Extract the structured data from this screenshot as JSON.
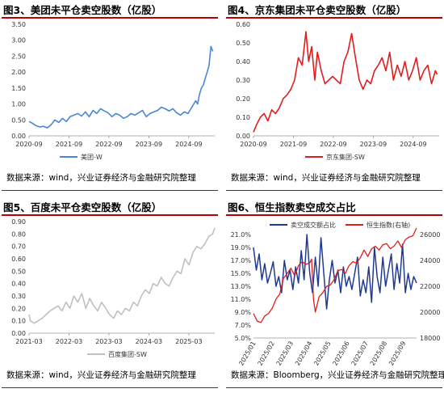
{
  "source_text": "数据来源：wind，兴业证券经济与金融研究院整理",
  "source_text_bbg": "数据来源：Bloomberg，兴业证券经济与金融研究院整理",
  "chart_data": [
    {
      "id": "fig3",
      "type": "line",
      "title": "图3、美团未平仓卖空股数（亿股）",
      "ylim": [
        0,
        3.5
      ],
      "yticks": [
        "0.00",
        "0.50",
        "1.00",
        "1.50",
        "2.00",
        "2.50",
        "3.00",
        "3.50"
      ],
      "xticks": [
        "2020-09",
        "2021-09",
        "2022-09",
        "2023-09",
        "2024-09"
      ],
      "xrange": [
        2020.67,
        2025.55
      ],
      "color": "#4a86d4",
      "series": [
        {
          "name": "美团-W",
          "x": [
            2020.67,
            2020.75,
            2020.85,
            2020.95,
            2021.05,
            2021.15,
            2021.25,
            2021.35,
            2021.45,
            2021.55,
            2021.65,
            2021.75,
            2021.85,
            2021.95,
            2022.05,
            2022.15,
            2022.25,
            2022.35,
            2022.45,
            2022.55,
            2022.65,
            2022.75,
            2022.85,
            2022.95,
            2023.05,
            2023.15,
            2023.25,
            2023.35,
            2023.45,
            2023.55,
            2023.65,
            2023.75,
            2023.85,
            2023.95,
            2024.05,
            2024.15,
            2024.25,
            2024.35,
            2024.45,
            2024.55,
            2024.65,
            2024.75,
            2024.85,
            2024.95,
            2025.05,
            2025.1,
            2025.15,
            2025.2,
            2025.25,
            2025.3,
            2025.35,
            2025.4,
            2025.45,
            2025.5
          ],
          "y": [
            0.45,
            0.4,
            0.32,
            0.28,
            0.3,
            0.25,
            0.35,
            0.5,
            0.42,
            0.55,
            0.45,
            0.6,
            0.65,
            0.7,
            0.62,
            0.75,
            0.6,
            0.8,
            0.7,
            0.85,
            0.78,
            0.72,
            0.6,
            0.7,
            0.65,
            0.55,
            0.6,
            0.7,
            0.65,
            0.72,
            0.8,
            0.6,
            0.7,
            0.75,
            0.8,
            0.9,
            0.85,
            0.78,
            0.85,
            0.72,
            0.65,
            0.75,
            0.7,
            0.9,
            1.1,
            1.0,
            1.3,
            1.5,
            1.6,
            1.8,
            2.0,
            2.2,
            2.8,
            2.65
          ]
        }
      ]
    },
    {
      "id": "fig4",
      "type": "line",
      "title": "图4、京东集团未平仓卖空股数（亿股）",
      "ylim": [
        0,
        0.6
      ],
      "yticks": [
        "0.00",
        "0.10",
        "0.20",
        "0.30",
        "0.40",
        "0.50",
        "0.60"
      ],
      "xticks": [
        "2020-09",
        "2021-09",
        "2022-09",
        "2023-09",
        "2024-09"
      ],
      "xrange": [
        2020.67,
        2025.55
      ],
      "color": "#e11d1d",
      "series": [
        {
          "name": "京东集团-SW",
          "x": [
            2020.67,
            2020.75,
            2020.85,
            2020.95,
            2021.05,
            2021.15,
            2021.25,
            2021.35,
            2021.45,
            2021.55,
            2021.65,
            2021.75,
            2021.85,
            2021.95,
            2022.05,
            2022.12,
            2022.2,
            2022.28,
            2022.35,
            2022.45,
            2022.55,
            2022.65,
            2022.75,
            2022.85,
            2022.95,
            2023.05,
            2023.15,
            2023.25,
            2023.35,
            2023.45,
            2023.55,
            2023.65,
            2023.75,
            2023.85,
            2023.95,
            2024.05,
            2024.15,
            2024.25,
            2024.35,
            2024.45,
            2024.55,
            2024.65,
            2024.75,
            2024.85,
            2024.95,
            2025.05,
            2025.15,
            2025.25,
            2025.35,
            2025.45,
            2025.5
          ],
          "y": [
            0.02,
            0.06,
            0.1,
            0.12,
            0.08,
            0.14,
            0.12,
            0.15,
            0.2,
            0.22,
            0.25,
            0.3,
            0.42,
            0.38,
            0.56,
            0.4,
            0.48,
            0.3,
            0.45,
            0.35,
            0.28,
            0.3,
            0.32,
            0.3,
            0.28,
            0.4,
            0.45,
            0.55,
            0.42,
            0.3,
            0.25,
            0.3,
            0.28,
            0.35,
            0.38,
            0.42,
            0.35,
            0.45,
            0.3,
            0.38,
            0.32,
            0.4,
            0.3,
            0.35,
            0.42,
            0.3,
            0.35,
            0.38,
            0.28,
            0.35,
            0.33
          ]
        }
      ]
    },
    {
      "id": "fig5",
      "type": "line",
      "title": "图5、百度未平仓卖空股数（亿股）",
      "ylim": [
        0,
        0.9
      ],
      "yticks": [
        "0.00",
        "0.10",
        "0.20",
        "0.30",
        "0.40",
        "0.50",
        "0.60",
        "0.70",
        "0.80",
        "0.90"
      ],
      "xticks": [
        "2021-03",
        "2022-03",
        "2023-03",
        "2024-03",
        "2025-03"
      ],
      "xrange": [
        2021.17,
        2025.85
      ],
      "color": "#c0c0c0",
      "series": [
        {
          "name": "百度集团-SW",
          "x": [
            2021.17,
            2021.2,
            2021.3,
            2021.4,
            2021.5,
            2021.6,
            2021.7,
            2021.8,
            2021.9,
            2022.0,
            2022.1,
            2022.2,
            2022.3,
            2022.4,
            2022.5,
            2022.6,
            2022.7,
            2022.8,
            2022.9,
            2023.0,
            2023.1,
            2023.2,
            2023.3,
            2023.4,
            2023.5,
            2023.6,
            2023.7,
            2023.8,
            2023.9,
            2024.0,
            2024.1,
            2024.2,
            2024.3,
            2024.4,
            2024.5,
            2024.6,
            2024.7,
            2024.8,
            2024.9,
            2025.0,
            2025.1,
            2025.2,
            2025.3,
            2025.4,
            2025.5,
            2025.6,
            2025.7,
            2025.8,
            2025.85
          ],
          "y": [
            0.15,
            0.1,
            0.08,
            0.1,
            0.12,
            0.15,
            0.18,
            0.2,
            0.22,
            0.18,
            0.25,
            0.2,
            0.3,
            0.25,
            0.32,
            0.2,
            0.28,
            0.22,
            0.18,
            0.25,
            0.2,
            0.15,
            0.12,
            0.18,
            0.15,
            0.2,
            0.18,
            0.25,
            0.22,
            0.3,
            0.35,
            0.32,
            0.4,
            0.38,
            0.45,
            0.4,
            0.38,
            0.45,
            0.5,
            0.48,
            0.6,
            0.55,
            0.65,
            0.7,
            0.68,
            0.72,
            0.78,
            0.8,
            0.85
          ]
        }
      ]
    },
    {
      "id": "fig6",
      "type": "line",
      "title": "图6、恒生指数卖空成交占比",
      "ylim": [
        5.0,
        21.0
      ],
      "yticks": [
        "5.0%",
        "7.0%",
        "9.0%",
        "11.0%",
        "13.0%",
        "15.0%",
        "17.0%",
        "19.0%",
        "21.0%"
      ],
      "y2lim": [
        18000,
        26000
      ],
      "y2ticks": [
        "18000",
        "20000",
        "22000",
        "24000",
        "26000"
      ],
      "xticks": [
        "2025/01",
        "2025/02",
        "2025/03",
        "2025/04",
        "2025/05",
        "2025/06",
        "2025/07",
        "2025/08",
        "2025/09"
      ],
      "xrange": [
        0,
        8.7
      ],
      "legend": [
        "卖空成交额占比",
        "恒生指数(右轴)"
      ],
      "series": [
        {
          "name": "卖空成交额占比",
          "axis": "left",
          "color": "#1f3a93",
          "x": [
            0,
            0.15,
            0.3,
            0.45,
            0.6,
            0.75,
            0.9,
            1.05,
            1.2,
            1.35,
            1.5,
            1.65,
            1.8,
            1.95,
            2.1,
            2.25,
            2.4,
            2.55,
            2.7,
            2.85,
            3.0,
            3.15,
            3.3,
            3.45,
            3.6,
            3.75,
            3.9,
            4.05,
            4.2,
            4.35,
            4.5,
            4.65,
            4.8,
            4.95,
            5.1,
            5.25,
            5.4,
            5.55,
            5.7,
            5.85,
            6.0,
            6.15,
            6.3,
            6.45,
            6.6,
            6.75,
            6.9,
            7.05,
            7.2,
            7.35,
            7.5,
            7.65,
            7.8,
            7.95,
            8.1,
            8.25,
            8.4,
            8.55,
            8.7
          ],
          "y": [
            19.0,
            15.5,
            18.0,
            14.0,
            16.5,
            13.5,
            15.0,
            16.8,
            13.0,
            14.5,
            12.0,
            17.0,
            14.0,
            15.5,
            12.5,
            16.0,
            13.5,
            18.5,
            14.0,
            21.0,
            15.0,
            12.0,
            17.5,
            13.0,
            20.5,
            15.0,
            9.5,
            14.0,
            17.0,
            13.5,
            15.5,
            12.0,
            16.0,
            13.0,
            14.5,
            12.5,
            15.0,
            17.5,
            11.5,
            14.0,
            12.0,
            16.0,
            10.5,
            19.0,
            14.5,
            12.0,
            17.5,
            13.0,
            15.5,
            18.0,
            12.5,
            16.5,
            13.5,
            19.5,
            12.0,
            15.0,
            12.5,
            14.5,
            13.5
          ]
        },
        {
          "name": "恒生指数(右轴)",
          "axis": "right",
          "color": "#e11d1d",
          "x": [
            0,
            0.2,
            0.4,
            0.6,
            0.8,
            1.0,
            1.2,
            1.4,
            1.6,
            1.8,
            2.0,
            2.2,
            2.4,
            2.6,
            2.8,
            3.0,
            3.1,
            3.2,
            3.3,
            3.5,
            3.7,
            3.9,
            4.1,
            4.3,
            4.5,
            4.7,
            4.9,
            5.1,
            5.3,
            5.5,
            5.7,
            5.9,
            6.1,
            6.3,
            6.5,
            6.7,
            6.9,
            7.1,
            7.3,
            7.5,
            7.7,
            7.9,
            8.1,
            8.3,
            8.5,
            8.7
          ],
          "y": [
            19900,
            19300,
            19200,
            19700,
            19900,
            20300,
            21000,
            21400,
            22600,
            23000,
            23400,
            22800,
            23600,
            23900,
            23700,
            23800,
            24100,
            21000,
            20000,
            21200,
            21500,
            22000,
            22100,
            22500,
            23200,
            23300,
            23000,
            23600,
            23900,
            23800,
            24200,
            24800,
            24300,
            24900,
            25100,
            24800,
            25200,
            25300,
            24900,
            25100,
            25500,
            25000,
            25600,
            25800,
            25900,
            26500
          ]
        }
      ]
    }
  ]
}
